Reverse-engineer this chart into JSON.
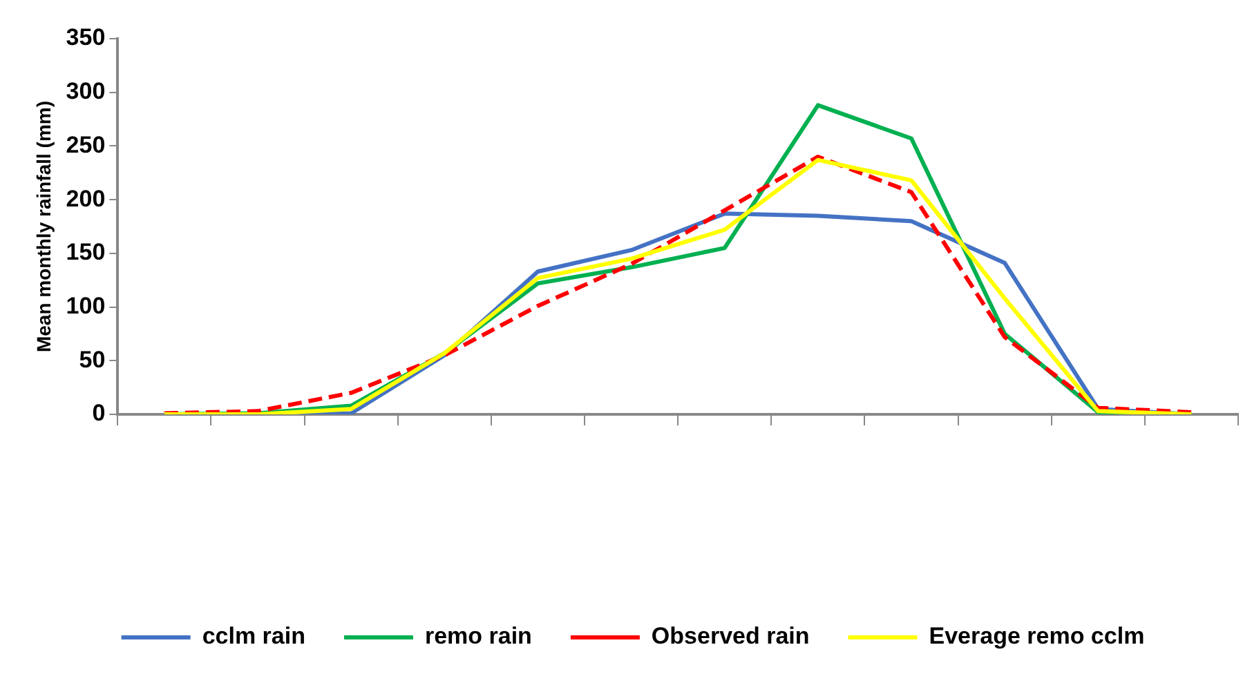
{
  "chart_data": {
    "type": "line",
    "ylabel": "Mean monthly rainfall (mm)",
    "categories": [
      null,
      null,
      null,
      null,
      null,
      null,
      null,
      null,
      null,
      null,
      null,
      null
    ],
    "ylim": [
      0,
      350
    ],
    "yticks": [
      0,
      50,
      100,
      150,
      200,
      250,
      300,
      350
    ],
    "grid": false,
    "legend": "bottom",
    "marker": "none",
    "series": [
      {
        "name": "cclm rain",
        "color": "#4472c4",
        "line_style": "solid",
        "values": [
          0,
          0,
          1,
          55,
          133,
          153,
          187,
          185,
          180,
          141,
          5,
          0
        ]
      },
      {
        "name": "remo rain",
        "color": "#00b050",
        "line_style": "solid",
        "values": [
          0,
          1,
          8,
          57,
          122,
          137,
          155,
          288,
          257,
          75,
          2,
          0
        ]
      },
      {
        "name": "Observed rain",
        "color": "#ff0000",
        "line_style": "dashed",
        "values": [
          1,
          3,
          20,
          55,
          101,
          140,
          190,
          240,
          207,
          72,
          6,
          2
        ]
      },
      {
        "name": "Everage remo cclm",
        "color": "#ffff00",
        "line_style": "solid",
        "values": [
          0,
          0,
          5,
          57,
          127,
          145,
          172,
          237,
          218,
          108,
          3,
          0
        ]
      }
    ]
  }
}
